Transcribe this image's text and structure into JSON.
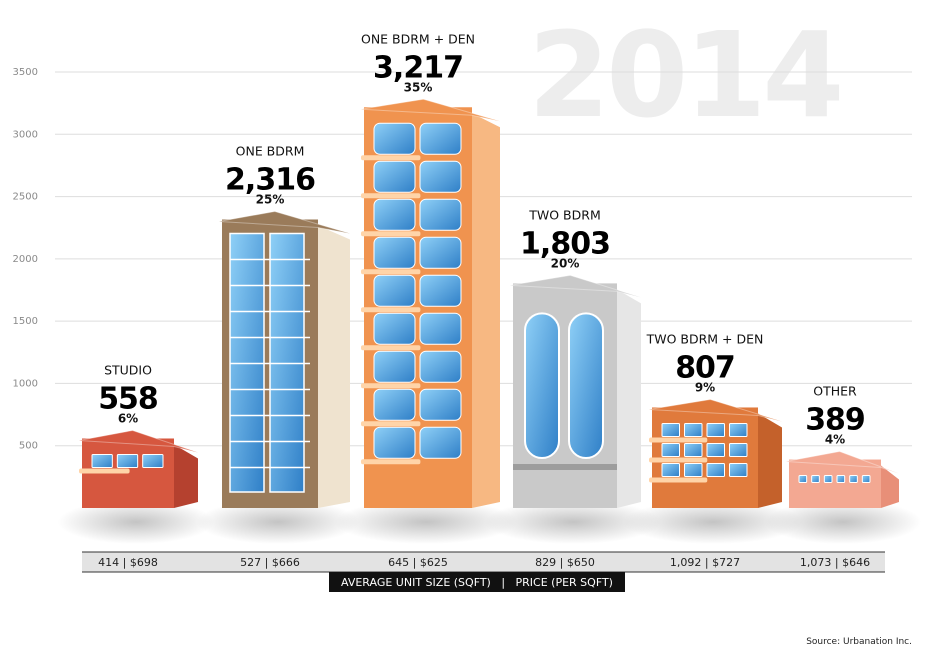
{
  "chart_data": {
    "type": "bar",
    "year_label": "2014",
    "categories": [
      "STUDIO",
      "ONE BDRM",
      "ONE BDRM + DEN",
      "TWO BDRM",
      "TWO BDRM + DEN",
      "OTHER"
    ],
    "values": [
      558,
      2316,
      3217,
      1803,
      807,
      389
    ],
    "value_labels": [
      "558",
      "2,316",
      "3,217",
      "1,803",
      "807",
      "389"
    ],
    "percent_labels": [
      "6%",
      "25%",
      "35%",
      "20%",
      "9%",
      "4%"
    ],
    "size_price_labels": [
      "414  |  $698",
      "527  |  $666",
      "645  |  $625",
      "829  |  $650",
      "1,092  |  $727",
      "1,073  |  $646"
    ],
    "y_ticks": [
      500,
      1000,
      1500,
      2000,
      2500,
      3000,
      3500
    ],
    "ylim": [
      0,
      3500
    ],
    "grid": true,
    "strip_label": "AVERAGE UNIT SIZE (SQFT)   |   PRICE (PER SQFT)",
    "source": "Source: Urbanation Inc.",
    "colors": {
      "studio": "#d6573f",
      "one_bdrm": "#9a7b5a",
      "one_bdrm_den": "#f0934f",
      "two_bdrm": "#c9c9c9",
      "two_bdrm_den": "#e07a3c",
      "other": "#f3a892",
      "window": "#5aa6e0",
      "grid": "#dddddd"
    }
  }
}
